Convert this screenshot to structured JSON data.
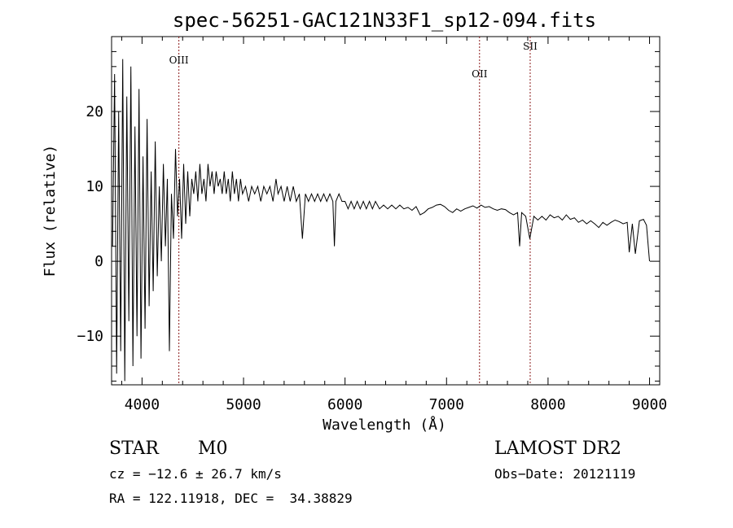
{
  "chart_data": {
    "type": "line",
    "title": "spec-56251-GAC121N33F1_sp12-094.fits",
    "xlabel": "Wavelength (Å)",
    "ylabel": "Flux (relative)",
    "xlim": [
      3700,
      9100
    ],
    "ylim": [
      -16.5,
      30
    ],
    "xticks": [
      4000,
      5000,
      6000,
      7000,
      8000,
      9000
    ],
    "yticks": [
      -10,
      0,
      10,
      20
    ],
    "grid": false,
    "legend": "none",
    "line_color": "#000000",
    "marker_color": "#8b1a1a",
    "series": [
      {
        "x": [
          3710,
          3730,
          3750,
          3770,
          3790,
          3810,
          3830,
          3850,
          3870,
          3890,
          3910,
          3930,
          3950,
          3970,
          3990,
          4010,
          4030,
          4050,
          4070,
          4090,
          4110,
          4130,
          4150,
          4170,
          4190,
          4210,
          4230,
          4250,
          4270,
          4290,
          4310,
          4330,
          4350,
          4370,
          4390,
          4410,
          4430,
          4450,
          4470,
          4490,
          4510,
          4530,
          4550,
          4570,
          4590,
          4610,
          4630,
          4650,
          4670,
          4690,
          4710,
          4730,
          4750,
          4770,
          4790,
          4810,
          4830,
          4850,
          4870,
          4890,
          4910,
          4930,
          4950,
          4970,
          4990,
          5020,
          5050,
          5080,
          5110,
          5140,
          5170,
          5200,
          5230,
          5260,
          5290,
          5320,
          5340,
          5370,
          5400,
          5430,
          5460,
          5490,
          5520,
          5550,
          5580,
          5610,
          5640,
          5670,
          5700,
          5730,
          5760,
          5790,
          5820,
          5850,
          5880,
          5895,
          5910,
          5940,
          5970,
          6000,
          6030,
          6060,
          6090,
          6120,
          6150,
          6180,
          6210,
          6240,
          6270,
          6300,
          6340,
          6380,
          6420,
          6460,
          6500,
          6540,
          6580,
          6620,
          6660,
          6700,
          6740,
          6780,
          6820,
          6860,
          6900,
          6940,
          6980,
          7020,
          7060,
          7100,
          7140,
          7180,
          7220,
          7260,
          7300,
          7340,
          7380,
          7420,
          7460,
          7500,
          7540,
          7580,
          7620,
          7660,
          7700,
          7720,
          7740,
          7780,
          7820,
          7860,
          7900,
          7940,
          7980,
          8020,
          8060,
          8100,
          8140,
          8180,
          8220,
          8260,
          8300,
          8340,
          8380,
          8420,
          8460,
          8500,
          8540,
          8580,
          8620,
          8660,
          8700,
          8740,
          8780,
          8800,
          8830,
          8860,
          8900,
          8940,
          8970,
          9000
        ],
        "y": [
          2,
          25,
          -15,
          20,
          -12,
          27,
          -16,
          22,
          -8,
          26,
          -14,
          18,
          -10,
          23,
          -13,
          14,
          -9,
          19,
          -6,
          12,
          -4,
          16,
          -2,
          10,
          0,
          13,
          2,
          11,
          -12,
          9,
          3,
          15,
          6,
          11,
          3,
          13,
          5,
          12,
          6,
          11,
          9,
          12,
          8,
          13,
          9,
          11,
          8,
          13,
          10,
          12,
          9,
          12,
          10,
          11,
          9,
          12,
          9,
          11,
          8,
          12,
          9,
          11,
          8,
          11,
          9,
          10,
          8,
          10,
          9,
          10,
          8,
          10,
          9,
          10,
          8,
          11,
          9,
          10,
          8,
          10,
          8,
          10,
          8,
          9,
          3,
          9,
          8,
          9,
          8,
          9,
          8,
          9,
          8,
          9,
          8,
          2,
          8,
          9,
          8,
          8,
          7,
          8,
          7,
          8,
          7,
          8,
          7,
          8,
          7,
          8,
          7,
          7.5,
          7,
          7.5,
          7,
          7.5,
          7,
          7.2,
          6.8,
          7.3,
          6.2,
          6.5,
          7,
          7.2,
          7.5,
          7.6,
          7.3,
          6.8,
          6.5,
          7,
          6.7,
          7,
          7.2,
          7.4,
          7.1,
          7.5,
          7.2,
          7.3,
          7,
          6.8,
          7,
          6.9,
          6.5,
          6.2,
          6.5,
          2,
          6.5,
          6,
          3,
          6,
          5.5,
          6,
          5.5,
          6.2,
          5.8,
          6,
          5.5,
          6.2,
          5.6,
          5.8,
          5.2,
          5.5,
          5,
          5.4,
          5,
          4.5,
          5.2,
          4.8,
          5.2,
          5.5,
          5.3,
          5,
          5.2,
          1.2,
          5,
          1,
          5.4,
          5.6,
          4.8,
          0
        ]
      }
    ],
    "line_markers": [
      {
        "label": "OIII",
        "x": 4363
      },
      {
        "label": "OII",
        "x": 7325
      },
      {
        "label": "SII",
        "x": 7824
      }
    ]
  },
  "info": {
    "object_class": "STAR",
    "subclass": "M0",
    "survey": "LAMOST DR2",
    "cz": "cz = −12.6 ± 26.7 km/s",
    "obs_date": "Obs−Date: 20121119",
    "coords": "RA = 122.11918, DEC =  34.38829"
  }
}
